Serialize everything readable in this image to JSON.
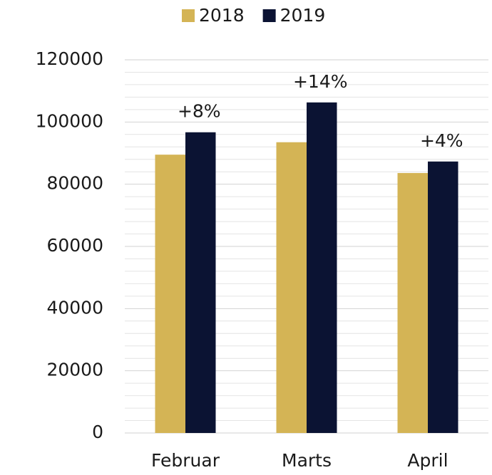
{
  "chart_data": {
    "type": "bar",
    "categories": [
      "Februar",
      "Marts",
      "April"
    ],
    "series": [
      {
        "name": "2018",
        "color": "#d4b455",
        "values": [
          89500,
          93500,
          83600
        ]
      },
      {
        "name": "2019",
        "color": "#0b1333",
        "values": [
          96700,
          106300,
          87300
        ]
      }
    ],
    "annotations": [
      "+8%",
      "+14%",
      "+4%"
    ],
    "ylim": [
      0,
      120000
    ],
    "yticks": [
      0,
      20000,
      40000,
      60000,
      80000,
      100000,
      120000
    ],
    "grid": true,
    "minor_grid_divisions": 5,
    "legend": "top"
  }
}
